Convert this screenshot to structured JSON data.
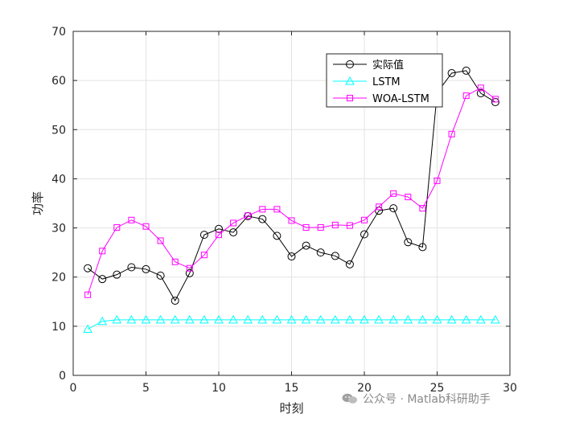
{
  "chart_data": {
    "type": "line",
    "title": "",
    "xlabel": "时刻",
    "ylabel": "功率",
    "xlim": [
      0,
      30
    ],
    "ylim": [
      0,
      70
    ],
    "xticks": [
      0,
      5,
      10,
      15,
      20,
      25,
      30
    ],
    "yticks": [
      0,
      10,
      20,
      30,
      40,
      50,
      60,
      70
    ],
    "grid": true,
    "legend_position": "top-right",
    "x": [
      1,
      2,
      3,
      4,
      5,
      6,
      7,
      8,
      9,
      10,
      11,
      12,
      13,
      14,
      15,
      16,
      17,
      18,
      19,
      20,
      21,
      22,
      23,
      24,
      25,
      26,
      27,
      28,
      29
    ],
    "series": [
      {
        "name": "实际值",
        "color": "#000000",
        "marker": "circle",
        "values": [
          21.8,
          19.6,
          20.5,
          22.0,
          21.6,
          20.3,
          15.2,
          20.8,
          28.6,
          29.8,
          29.1,
          32.4,
          31.8,
          28.4,
          24.2,
          26.4,
          25.0,
          24.3,
          22.6,
          28.7,
          33.5,
          34.0,
          27.1,
          26.1,
          57.5,
          61.5,
          62.0,
          57.4,
          55.6
        ]
      },
      {
        "name": "LSTM",
        "color": "#00ffff",
        "marker": "triangle",
        "values": [
          9.4,
          11.0,
          11.3,
          11.3,
          11.3,
          11.3,
          11.3,
          11.3,
          11.3,
          11.3,
          11.3,
          11.3,
          11.3,
          11.3,
          11.3,
          11.3,
          11.3,
          11.3,
          11.3,
          11.3,
          11.3,
          11.3,
          11.3,
          11.3,
          11.3,
          11.3,
          11.3,
          11.3,
          11.3
        ]
      },
      {
        "name": "WOA-LSTM",
        "color": "#ff00ff",
        "marker": "square",
        "values": [
          16.4,
          25.3,
          30.1,
          31.6,
          30.3,
          27.4,
          23.1,
          21.8,
          24.5,
          28.6,
          31.0,
          32.5,
          33.8,
          33.8,
          31.5,
          30.1,
          30.1,
          30.6,
          30.5,
          31.6,
          34.3,
          37.0,
          36.3,
          34.0,
          39.6,
          49.1,
          56.9,
          58.5,
          56.2
        ]
      }
    ]
  },
  "watermark": {
    "text": "公众号 · Matlab科研助手"
  }
}
